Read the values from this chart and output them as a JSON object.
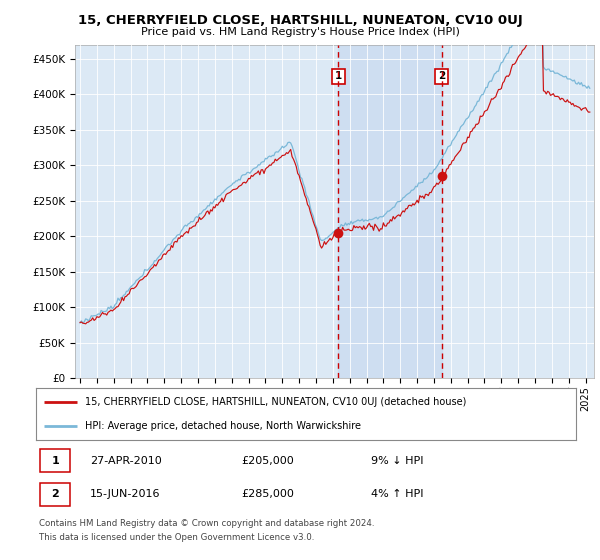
{
  "title": "15, CHERRYFIELD CLOSE, HARTSHILL, NUNEATON, CV10 0UJ",
  "subtitle": "Price paid vs. HM Land Registry's House Price Index (HPI)",
  "ylabel_ticks": [
    "£0",
    "£50K",
    "£100K",
    "£150K",
    "£200K",
    "£250K",
    "£300K",
    "£350K",
    "£400K",
    "£450K"
  ],
  "ylabel_values": [
    0,
    50000,
    100000,
    150000,
    200000,
    250000,
    300000,
    350000,
    400000,
    450000
  ],
  "ylim": [
    0,
    470000
  ],
  "xlim_start": 1994.7,
  "xlim_end": 2025.5,
  "hpi_color": "#7bb8d8",
  "price_color": "#cc1111",
  "bg_color": "#dce9f5",
  "grid_color": "white",
  "marker1_date": 2010.32,
  "marker1_price": 205000,
  "marker1_label": "27-APR-2010",
  "marker1_pct": "9% ↓ HPI",
  "marker2_date": 2016.46,
  "marker2_price": 285000,
  "marker2_label": "15-JUN-2016",
  "marker2_pct": "4% ↑ HPI",
  "legend_line1": "15, CHERRYFIELD CLOSE, HARTSHILL, NUNEATON, CV10 0UJ (detached house)",
  "legend_line2": "HPI: Average price, detached house, North Warwickshire",
  "footer1": "Contains HM Land Registry data © Crown copyright and database right 2024.",
  "footer2": "This data is licensed under the Open Government Licence v3.0."
}
